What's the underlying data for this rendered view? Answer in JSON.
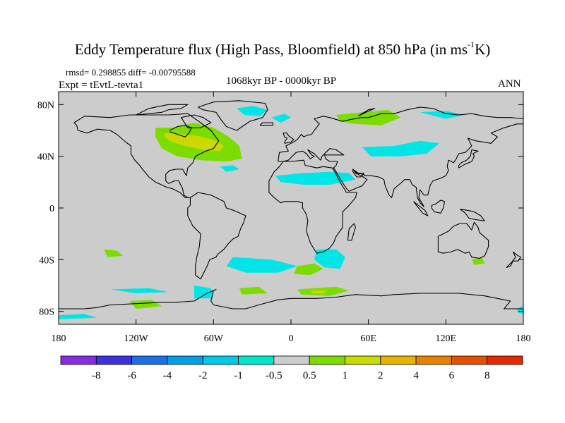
{
  "title": {
    "main": "Eddy Temperature flux (High Pass, Bloomfield) at 850 hPa (in ms",
    "sup": "-1",
    "end": "K)"
  },
  "annotations": {
    "stats": "rmsd= 0.298855 diff= -0.00795588",
    "experiment": "Expt = tEvtL-tevta1",
    "period": "1068kyr BP - 0000kyr BP",
    "season": "ANN"
  },
  "colors": {
    "ocean_land": "#cccccc",
    "coast": "#000000",
    "cyan": "#00e5e5",
    "green": "#7cdc00",
    "yellow": "#ccd800"
  },
  "chart_data": {
    "type": "heatmap",
    "title": "Eddy Temperature flux (High Pass, Bloomfield) at 850 hPa (in ms-1K)",
    "xlabel": "",
    "ylabel": "",
    "xlim": [
      -180,
      180
    ],
    "ylim": [
      -90,
      90
    ],
    "x_ticks": [
      {
        "value": -180,
        "label": "180"
      },
      {
        "value": -120,
        "label": "120W"
      },
      {
        "value": -60,
        "label": "60W"
      },
      {
        "value": 0,
        "label": "0"
      },
      {
        "value": 60,
        "label": "60E"
      },
      {
        "value": 120,
        "label": "120E"
      },
      {
        "value": 180,
        "label": "180"
      }
    ],
    "y_ticks": [
      {
        "value": 80,
        "label": "80N"
      },
      {
        "value": 40,
        "label": "40N"
      },
      {
        "value": 0,
        "label": "0"
      },
      {
        "value": -40,
        "label": "40S"
      },
      {
        "value": -80,
        "label": "80S"
      }
    ],
    "colorbar": {
      "levels": [
        "-8",
        "-6",
        "-4",
        "-2",
        "-1",
        "-0.5",
        "0.5",
        "1",
        "2",
        "4",
        "6",
        "8"
      ],
      "colors": [
        "#8a2be2",
        "#3c32dc",
        "#1e6ee6",
        "#00a0e6",
        "#00c8e6",
        "#00e6c8",
        "#cccccc",
        "#7cdc00",
        "#c8dc00",
        "#e6b400",
        "#e68200",
        "#e65000",
        "#e62a00"
      ]
    },
    "regions": [
      {
        "band": "1 to 2",
        "color": "green",
        "points": [
          [
            -105,
            62
          ],
          [
            -90,
            62
          ],
          [
            -75,
            66
          ],
          [
            -60,
            62
          ],
          [
            -48,
            55
          ],
          [
            -40,
            48
          ],
          [
            -38,
            38
          ],
          [
            -50,
            36
          ],
          [
            -70,
            37
          ],
          [
            -88,
            40
          ],
          [
            -100,
            46
          ],
          [
            -105,
            55
          ]
        ]
      },
      {
        "band": "2 to 4",
        "color": "yellow",
        "points": [
          [
            -98,
            58
          ],
          [
            -82,
            57
          ],
          [
            -68,
            55
          ],
          [
            -58,
            52
          ],
          [
            -52,
            48
          ],
          [
            -55,
            44
          ],
          [
            -68,
            45
          ],
          [
            -82,
            48
          ],
          [
            -92,
            51
          ],
          [
            -98,
            55
          ]
        ]
      },
      {
        "band": "-1 to -0.5",
        "color": "cyan",
        "points": [
          [
            -42,
            77
          ],
          [
            -30,
            79
          ],
          [
            -18,
            76
          ],
          [
            -24,
            71
          ],
          [
            -36,
            72
          ]
        ]
      },
      {
        "band": "-1 to -0.5",
        "color": "cyan",
        "points": [
          [
            -15,
            70
          ],
          [
            -5,
            73
          ],
          [
            0,
            70
          ],
          [
            -8,
            66
          ]
        ]
      },
      {
        "band": "-1 to -0.5",
        "color": "cyan",
        "points": [
          [
            -55,
            32
          ],
          [
            -45,
            33
          ],
          [
            -40,
            30
          ],
          [
            -50,
            28
          ]
        ]
      },
      {
        "band": "-1 to -0.5",
        "color": "cyan",
        "points": [
          [
            -12,
            25
          ],
          [
            10,
            27
          ],
          [
            30,
            28
          ],
          [
            45,
            27
          ],
          [
            50,
            22
          ],
          [
            30,
            18
          ],
          [
            10,
            18
          ],
          [
            -8,
            20
          ]
        ]
      },
      {
        "band": "-1 to -0.5",
        "color": "cyan",
        "points": [
          [
            55,
            47
          ],
          [
            80,
            48
          ],
          [
            100,
            52
          ],
          [
            115,
            50
          ],
          [
            105,
            42
          ],
          [
            85,
            40
          ],
          [
            62,
            40
          ]
        ]
      },
      {
        "band": "1 to 2",
        "color": "green",
        "points": [
          [
            35,
            72
          ],
          [
            55,
            74
          ],
          [
            75,
            76
          ],
          [
            85,
            70
          ],
          [
            70,
            64
          ],
          [
            50,
            65
          ],
          [
            38,
            67
          ]
        ]
      },
      {
        "band": "-1 to -0.5",
        "color": "cyan",
        "points": [
          [
            100,
            74
          ],
          [
            120,
            75
          ],
          [
            135,
            72
          ],
          [
            120,
            69
          ]
        ]
      },
      {
        "band": "-1 to -0.5",
        "color": "cyan",
        "points": [
          [
            20,
            -32
          ],
          [
            35,
            -32
          ],
          [
            42,
            -38
          ],
          [
            38,
            -47
          ],
          [
            26,
            -46
          ],
          [
            18,
            -40
          ]
        ]
      },
      {
        "band": "1 to 2",
        "color": "green",
        "points": [
          [
            5,
            -45
          ],
          [
            18,
            -43
          ],
          [
            25,
            -47
          ],
          [
            15,
            -52
          ],
          [
            2,
            -51
          ]
        ]
      },
      {
        "band": "-1 to -0.5",
        "color": "cyan",
        "points": [
          [
            -45,
            -38
          ],
          [
            -15,
            -40
          ],
          [
            5,
            -45
          ],
          [
            -10,
            -50
          ],
          [
            -35,
            -50
          ],
          [
            -50,
            -45
          ]
        ]
      },
      {
        "band": "1 to 2",
        "color": "green",
        "points": [
          [
            -145,
            -32
          ],
          [
            -135,
            -33
          ],
          [
            -130,
            -37
          ],
          [
            -142,
            -38
          ]
        ]
      },
      {
        "band": "-1 to -0.5",
        "color": "cyan",
        "points": [
          [
            -140,
            -63
          ],
          [
            -110,
            -62
          ],
          [
            -95,
            -65
          ],
          [
            -120,
            -66
          ]
        ]
      },
      {
        "band": "1 to 2",
        "color": "green",
        "points": [
          [
            -125,
            -72
          ],
          [
            -108,
            -71
          ],
          [
            -100,
            -76
          ],
          [
            -120,
            -78
          ]
        ]
      },
      {
        "band": "1 to 2",
        "color": "green",
        "points": [
          [
            -40,
            -62
          ],
          [
            -25,
            -61
          ],
          [
            -18,
            -66
          ],
          [
            -38,
            -67
          ]
        ]
      },
      {
        "band": "-1 to -0.5",
        "color": "cyan",
        "points": [
          [
            -75,
            -60
          ],
          [
            -62,
            -62
          ],
          [
            -60,
            -70
          ],
          [
            -75,
            -70
          ]
        ]
      },
      {
        "band": "1 to 2",
        "color": "green",
        "points": [
          [
            5,
            -63
          ],
          [
            35,
            -61
          ],
          [
            45,
            -64
          ],
          [
            30,
            -68
          ],
          [
            8,
            -67
          ]
        ]
      },
      {
        "band": "2 to 4",
        "color": "yellow",
        "points": [
          [
            15,
            -64
          ],
          [
            28,
            -64
          ],
          [
            25,
            -66
          ],
          [
            17,
            -66
          ]
        ]
      },
      {
        "band": "1 to 2",
        "color": "green",
        "points": [
          [
            140,
            -40
          ],
          [
            148,
            -38
          ],
          [
            150,
            -43
          ],
          [
            142,
            -44
          ]
        ]
      },
      {
        "band": "-1 to -0.5",
        "color": "cyan",
        "points": [
          [
            -180,
            -83
          ],
          [
            -160,
            -82
          ],
          [
            -150,
            -85
          ],
          [
            -180,
            -86
          ]
        ]
      },
      {
        "band": "-1 to -0.5",
        "color": "cyan",
        "points": [
          [
            175,
            -78
          ],
          [
            180,
            -76
          ],
          [
            180,
            -82
          ],
          [
            176,
            -81
          ]
        ]
      }
    ]
  }
}
